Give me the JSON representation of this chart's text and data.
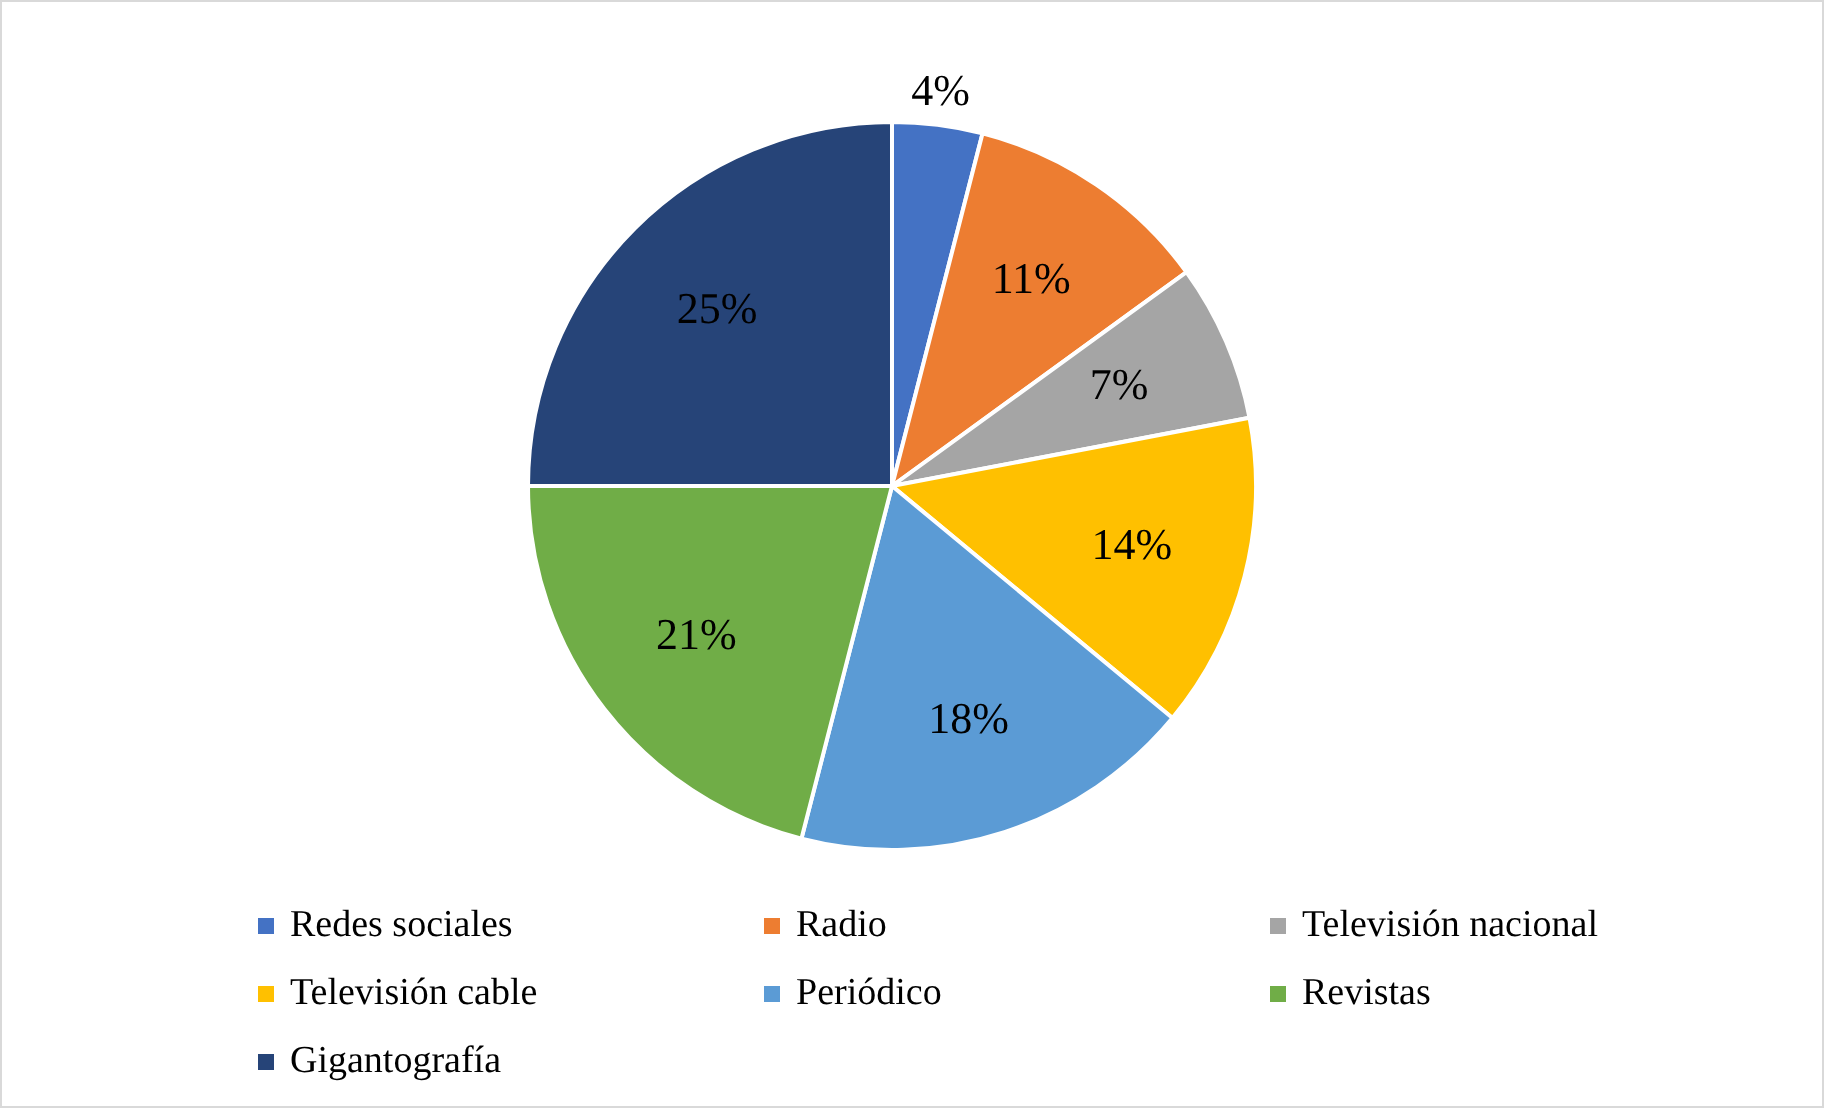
{
  "chart_data": {
    "type": "pie",
    "categories": [
      "Redes sociales",
      "Radio",
      "Televisión nacional",
      "Televisión cable",
      "Periódico",
      "Revistas",
      "Gigantografía"
    ],
    "values": [
      4,
      11,
      7,
      14,
      18,
      21,
      25
    ],
    "colors": [
      "#4472c4",
      "#ed7d31",
      "#a5a5a5",
      "#ffc000",
      "#5b9bd5",
      "#70ad47",
      "#264478"
    ],
    "value_labels": [
      "4%",
      "11%",
      "7%",
      "14%",
      "18%",
      "21%",
      "25%"
    ],
    "legend": "bottom"
  }
}
